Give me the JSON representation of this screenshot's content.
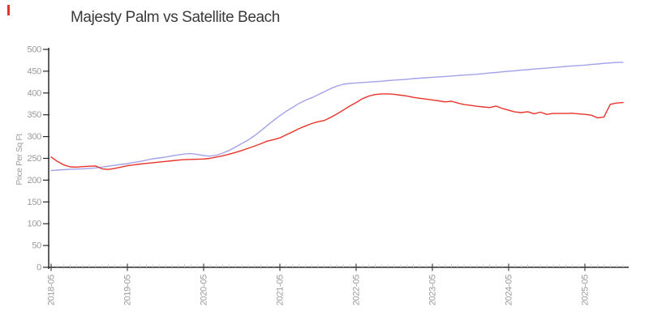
{
  "marker": {
    "color": "#e8332a"
  },
  "chart_data": {
    "type": "line",
    "title": "Majesty Palm vs Satellite Beach",
    "xlabel": "",
    "ylabel": "Price Per Sq Ft",
    "x_start": "2018-05",
    "x_step": "monthly",
    "x_tick_labels": [
      "2018-05",
      "2019-05",
      "2020-05",
      "2021-05",
      "2022-05",
      "2023-05",
      "2024-05",
      "2025-05"
    ],
    "y_tick_labels": [
      "0",
      "50",
      "100",
      "150",
      "200",
      "250",
      "300",
      "350",
      "400",
      "450",
      "500"
    ],
    "y_tick_step": 50,
    "ylim": [
      0,
      500
    ],
    "grid": false,
    "legend_position": "none",
    "axis_color": "#2a2a2a",
    "major_tick_color": "#444444",
    "minor_tick_color": "#c9c9c9",
    "tick_label_color": "#9b9b9b",
    "title_color": "#3a3a3a",
    "series": [
      {
        "name": "Majesty Palm",
        "color": "#a2a2e8",
        "values": [
          222,
          223,
          224,
          225,
          225.5,
          226,
          227,
          228,
          230,
          232,
          234,
          236,
          238,
          240.5,
          243,
          246,
          249,
          251,
          253,
          255.5,
          258,
          260,
          261,
          259,
          256.5,
          255,
          257,
          262,
          268,
          276,
          284,
          292,
          302,
          313,
          325,
          337,
          348,
          358,
          367,
          376,
          383,
          389,
          396,
          403,
          410,
          416,
          420,
          422,
          423,
          424,
          425,
          426,
          427,
          428.5,
          429.5,
          430.5,
          431.5,
          433,
          434,
          435,
          436,
          437,
          438,
          439,
          440,
          441,
          442,
          443,
          444.5,
          446,
          447,
          448.5,
          450,
          451,
          452.5,
          453.5,
          455,
          456,
          457,
          458.5,
          459.5,
          461,
          462,
          463,
          464,
          465.5,
          466.5,
          468,
          469,
          470,
          470.5
        ]
      },
      {
        "name": "Satellite Beach",
        "color": "#e8332a",
        "values": [
          253,
          243,
          235,
          230.5,
          230,
          231,
          232,
          232.5,
          226,
          224.5,
          227,
          230,
          233,
          235,
          237,
          238.5,
          240,
          241.5,
          243,
          244.5,
          246,
          247,
          247.5,
          248,
          248.5,
          250,
          253,
          256,
          259.5,
          263.5,
          268,
          273,
          278,
          283.5,
          289.5,
          293,
          297,
          304,
          311,
          318,
          324,
          330,
          334,
          337,
          344,
          352,
          361,
          370,
          378,
          387,
          393,
          396.5,
          398,
          398,
          397,
          395,
          393,
          390,
          388,
          386,
          384,
          382,
          379.5,
          381,
          377,
          373.5,
          371.5,
          369.5,
          368,
          366.5,
          370,
          364.5,
          360.5,
          356.5,
          355,
          357,
          352.5,
          356,
          351,
          353,
          353,
          353,
          353.5,
          352,
          351,
          349,
          343,
          345,
          374,
          377,
          378
        ]
      }
    ]
  }
}
